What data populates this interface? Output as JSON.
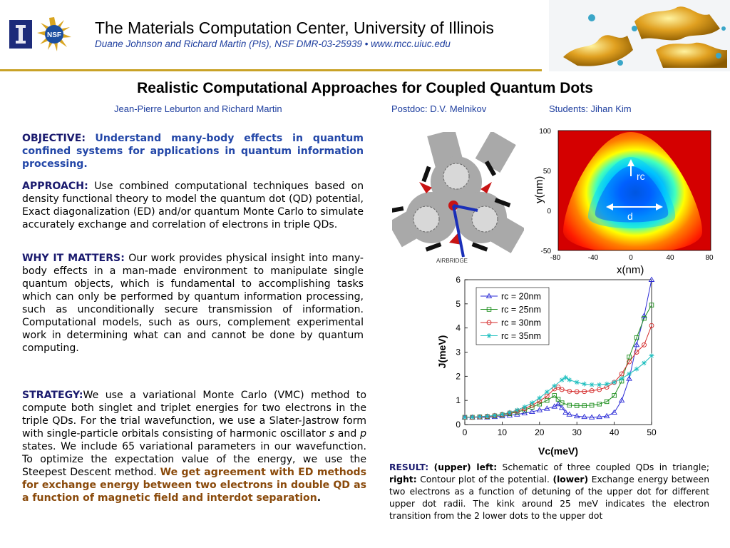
{
  "header": {
    "title": "The Materials Computation Center, University of Illinois",
    "subtitle": "Duane Johnson and Richard Martin (PIs), NSF DMR-03-25939 •  www.mcc.uiuc.edu",
    "nsf_logo_text": "NSF"
  },
  "poster": {
    "title": "Realistic Computational Approaches for Coupled Quantum Dots",
    "authors": "Jean-Pierre Leburton and Richard Martin",
    "postdoc": "Postdoc: D.V. Melnikov",
    "students": "Students: Jihan Kim"
  },
  "objective": {
    "label": "OBJECTIVE:",
    "text": "Understand many-body effects in quantum confined systems for applications in quantum information processing."
  },
  "approach": {
    "label": "APPROACH:",
    "text": "Use combined computational techniques based on density functional theory to model the quantum dot (QD) potential, Exact diagonalization (ED) and/or quantum Monte Carlo to simulate accurately exchange and correlation of electrons in triple QDs."
  },
  "why": {
    "label": "WHY IT MATTERS:",
    "text": "Our work provides physical insight into many-body effects in a man-made environment to manipulate single quantum objects, which is fundamental to accomplishing tasks which can only be performed by quantum information processing, such as unconditionally secure transmission of information. Computational models, such as ours, complement experimental work in determining what can and cannot be done by quantum computing."
  },
  "strategy": {
    "label": "STRATEGY:",
    "text_1": "We use a variational Monte Carlo (VMC) method to compute both singlet and triplet energies for two electrons in the triple QDs.  For the trial wavefunction, we use a Slater-Jastrow form with single-particle orbitals consisting of harmonic oscillator ",
    "italic_s": "s",
    "text_and": " and ",
    "italic_p": "p",
    "text_2": " states.  We include 65 variational parameters in our wavefunction.  To optimize the expectation value of the energy, we use the Steepest Descent method.",
    "highlight": "We get agreement with ED methods for exchange energy between two electrons in double QD as a function of magnetic field and interdot separation",
    "highlight_end": "."
  },
  "schematic": {
    "airbridge_label": "AIRBRIDGE"
  },
  "contour": {
    "ylabel": "y(nm)",
    "xlabel": "x(nm)",
    "x_ticks": [
      "-80",
      "-40",
      "0",
      "40",
      "80"
    ],
    "y_ticks": [
      "100",
      "50",
      "0",
      "-50"
    ],
    "rc_label": "rc",
    "d_label": "d"
  },
  "result": {
    "label": "RESULT:",
    "upper_left": "(upper) left:",
    "t1": " Schematic of three coupled QDs in triangle; ",
    "right": "right:",
    "t2": " Contour plot of the potential. ",
    "lower": "(lower)",
    "t3": " Exchange energy between two electrons as a function of detuning of the upper dot for different upper dot radii. The kink around 25 meV indicates the electron transition from the 2 lower dots to the upper dot"
  },
  "chart_data": {
    "type": "line",
    "xlabel": "Vc(meV)",
    "ylabel": "J(meV)",
    "xlim": [
      0,
      50
    ],
    "ylim": [
      0,
      6
    ],
    "x_ticks": [
      0,
      10,
      20,
      30,
      40,
      50
    ],
    "y_ticks": [
      0,
      1,
      2,
      3,
      4,
      5,
      6
    ],
    "legend": "top-left",
    "series": [
      {
        "name": "rc = 20nm",
        "color": "#2b2bd6",
        "marker": "triangle",
        "x": [
          0,
          2,
          4,
          6,
          8,
          10,
          12,
          14,
          16,
          18,
          20,
          22,
          24,
          25,
          26,
          27,
          28,
          30,
          32,
          34,
          36,
          38,
          40,
          42,
          44,
          46,
          48,
          50
        ],
        "y": [
          0.3,
          0.3,
          0.3,
          0.3,
          0.32,
          0.35,
          0.38,
          0.42,
          0.47,
          0.53,
          0.6,
          0.66,
          0.75,
          0.85,
          0.7,
          0.5,
          0.42,
          0.35,
          0.32,
          0.3,
          0.32,
          0.35,
          0.5,
          1.0,
          1.9,
          3.3,
          4.5,
          6.0
        ]
      },
      {
        "name": "rc = 25nm",
        "color": "#1e8f1e",
        "marker": "square",
        "x": [
          0,
          2,
          4,
          6,
          8,
          10,
          12,
          14,
          16,
          18,
          20,
          22,
          24,
          25,
          26,
          28,
          30,
          32,
          34,
          36,
          38,
          40,
          42,
          44,
          46,
          48,
          50
        ],
        "y": [
          0.3,
          0.3,
          0.32,
          0.33,
          0.36,
          0.4,
          0.45,
          0.52,
          0.6,
          0.72,
          0.85,
          1.0,
          1.2,
          1.05,
          0.9,
          0.8,
          0.78,
          0.78,
          0.8,
          0.85,
          0.95,
          1.2,
          1.8,
          2.8,
          3.6,
          4.4,
          4.95
        ]
      },
      {
        "name": "rc = 30nm",
        "color": "#d42a2a",
        "marker": "circle",
        "x": [
          0,
          2,
          4,
          6,
          8,
          10,
          12,
          14,
          16,
          18,
          20,
          22,
          24,
          25,
          26,
          28,
          30,
          32,
          34,
          36,
          38,
          40,
          42,
          44,
          46,
          48,
          50
        ],
        "y": [
          0.3,
          0.3,
          0.32,
          0.34,
          0.37,
          0.42,
          0.48,
          0.56,
          0.66,
          0.8,
          0.97,
          1.18,
          1.48,
          1.55,
          1.45,
          1.38,
          1.36,
          1.37,
          1.4,
          1.45,
          1.55,
          1.75,
          2.1,
          2.6,
          3.0,
          3.3,
          4.1
        ]
      },
      {
        "name": "rc = 35nm",
        "color": "#1fbfbf",
        "marker": "star",
        "x": [
          0,
          2,
          4,
          6,
          8,
          10,
          12,
          14,
          16,
          18,
          20,
          22,
          24,
          26,
          27,
          28,
          30,
          32,
          34,
          36,
          38,
          40,
          42,
          44,
          46,
          48,
          50
        ],
        "y": [
          0.3,
          0.31,
          0.33,
          0.35,
          0.38,
          0.43,
          0.5,
          0.6,
          0.73,
          0.9,
          1.1,
          1.35,
          1.6,
          1.85,
          1.95,
          1.85,
          1.75,
          1.68,
          1.65,
          1.65,
          1.68,
          1.75,
          1.9,
          2.1,
          2.3,
          2.55,
          2.85
        ]
      }
    ]
  }
}
